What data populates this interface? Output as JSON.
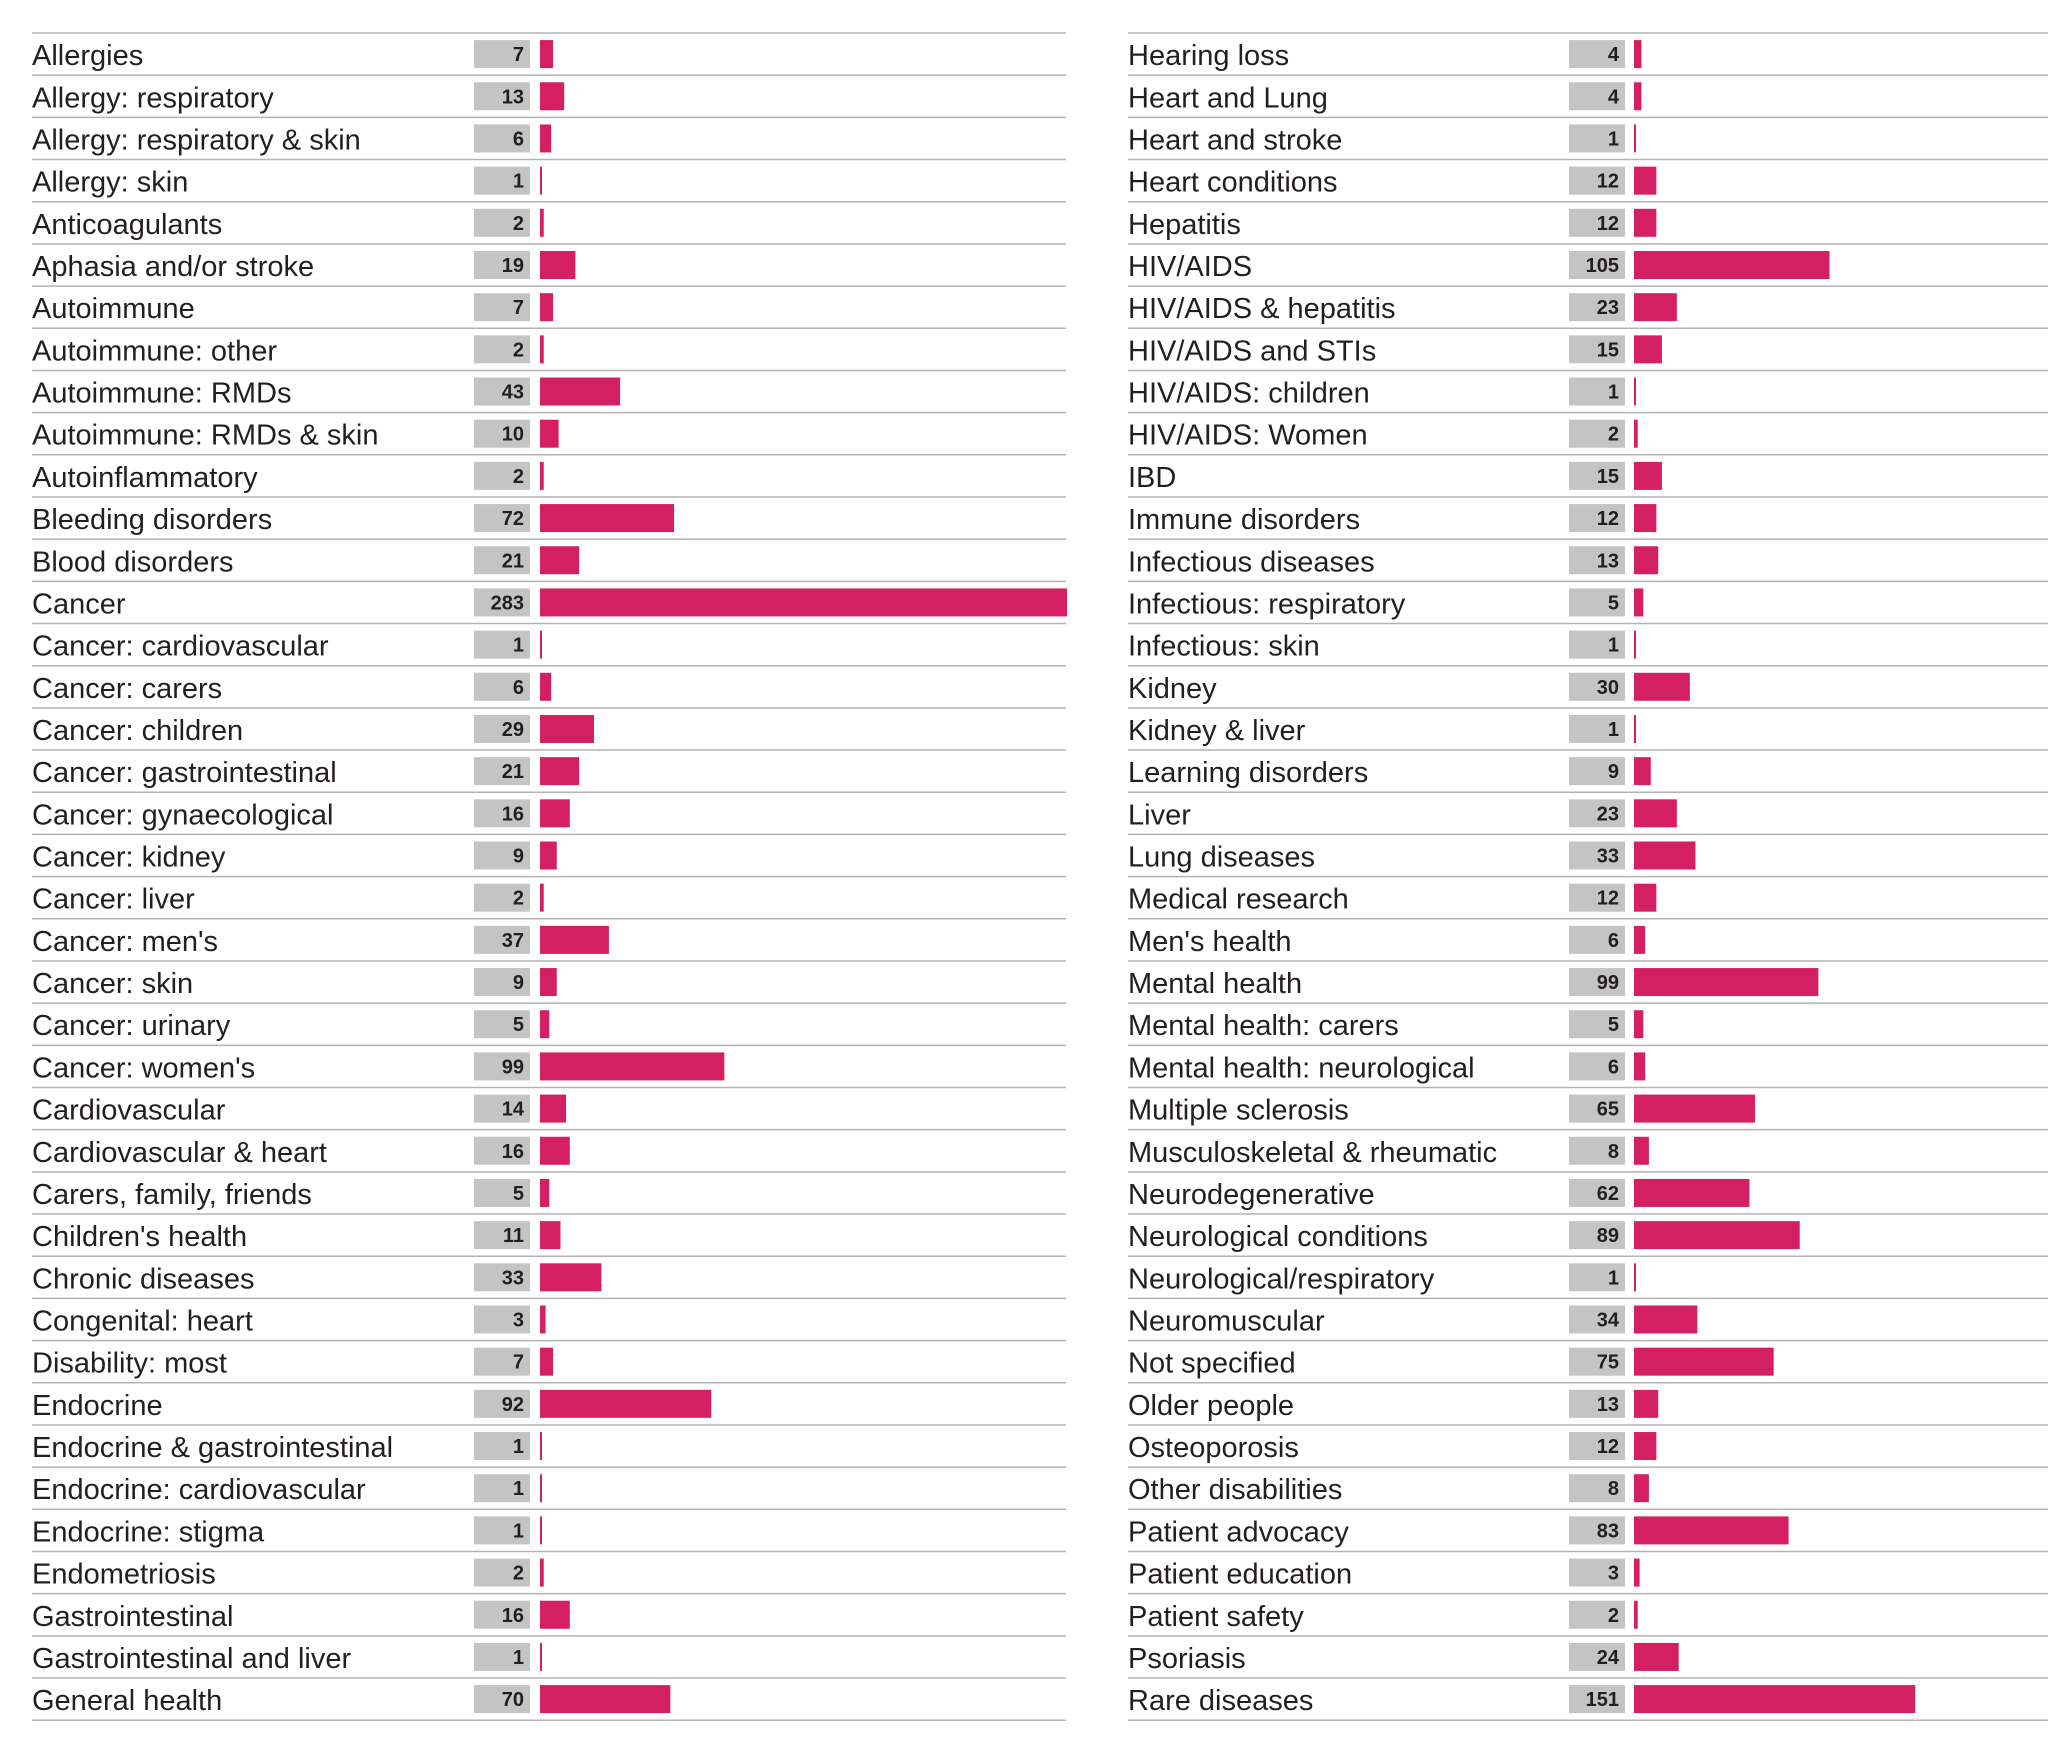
{
  "chart_data": [
    {
      "type": "bar",
      "orientation": "horizontal",
      "title": "",
      "xlabel": "",
      "ylabel": "",
      "xlim": [
        0,
        283
      ],
      "grid": false,
      "legend": "none",
      "colors": {
        "bar": "#d41f63",
        "value_box": "#c4c4c4",
        "rule": "#b3b3b3",
        "text": "#231f20"
      },
      "categories": [
        "Allergies",
        "Allergy: respiratory",
        "Allergy: respiratory & skin",
        "Allergy: skin",
        "Anticoagulants",
        "Aphasia and/or stroke",
        "Autoimmune",
        "Autoimmune: other",
        "Autoimmune: RMDs",
        "Autoimmune: RMDs & skin",
        "Autoinflammatory",
        "Bleeding disorders",
        "Blood disorders",
        "Cancer",
        "Cancer: cardiovascular",
        "Cancer: carers",
        "Cancer: children",
        "Cancer: gastrointestinal",
        "Cancer: gynaecological",
        "Cancer: kidney",
        "Cancer: liver",
        "Cancer: men's",
        "Cancer: skin",
        "Cancer: urinary",
        "Cancer: women's",
        "Cardiovascular",
        "Cardiovascular & heart",
        "Carers, family, friends",
        "Children's health",
        "Chronic diseases",
        "Congenital: heart",
        "Disability: most",
        "Endocrine",
        "Endocrine & gastrointestinal",
        "Endocrine: cardiovascular",
        "Endocrine: stigma",
        "Endometriosis",
        "Gastrointestinal",
        "Gastrointestinal and liver",
        "General health"
      ],
      "values": [
        7,
        13,
        6,
        1,
        2,
        19,
        7,
        2,
        43,
        10,
        2,
        72,
        21,
        283,
        1,
        6,
        29,
        21,
        16,
        9,
        2,
        37,
        9,
        5,
        99,
        14,
        16,
        5,
        11,
        33,
        3,
        7,
        92,
        1,
        1,
        1,
        2,
        16,
        1,
        70
      ]
    },
    {
      "type": "bar",
      "orientation": "horizontal",
      "title": "",
      "xlabel": "",
      "ylabel": "",
      "xlim": [
        0,
        283
      ],
      "grid": false,
      "legend": "none",
      "colors": {
        "bar": "#d41f63",
        "value_box": "#c4c4c4",
        "rule": "#b3b3b3",
        "text": "#231f20"
      },
      "categories": [
        "Hearing loss",
        "Heart and Lung",
        "Heart and stroke",
        "Heart conditions",
        "Hepatitis",
        "HIV/AIDS",
        "HIV/AIDS & hepatitis",
        "HIV/AIDS and STIs",
        "HIV/AIDS: children",
        "HIV/AIDS: Women",
        "IBD",
        "Immune disorders",
        "Infectious diseases",
        "Infectious: respiratory",
        "Infectious: skin",
        "Kidney",
        "Kidney & liver",
        "Learning disorders",
        "Liver",
        "Lung diseases",
        "Medical research",
        "Men's health",
        "Mental health",
        "Mental health: carers",
        "Mental health: neurological",
        "Multiple sclerosis",
        "Musculoskeletal & rheumatic",
        "Neurodegenerative",
        "Neurological conditions",
        "Neurological/respiratory",
        "Neuromuscular",
        "Not specified",
        "Older people",
        "Osteoporosis",
        "Other disabilities",
        "Patient advocacy",
        "Patient education",
        "Patient safety",
        "Psoriasis",
        "Rare diseases"
      ],
      "values": [
        4,
        4,
        1,
        12,
        12,
        105,
        23,
        15,
        1,
        2,
        15,
        12,
        13,
        5,
        1,
        30,
        1,
        9,
        23,
        33,
        12,
        6,
        99,
        5,
        6,
        65,
        8,
        62,
        89,
        1,
        34,
        75,
        13,
        12,
        8,
        83,
        3,
        2,
        24,
        151
      ]
    }
  ]
}
